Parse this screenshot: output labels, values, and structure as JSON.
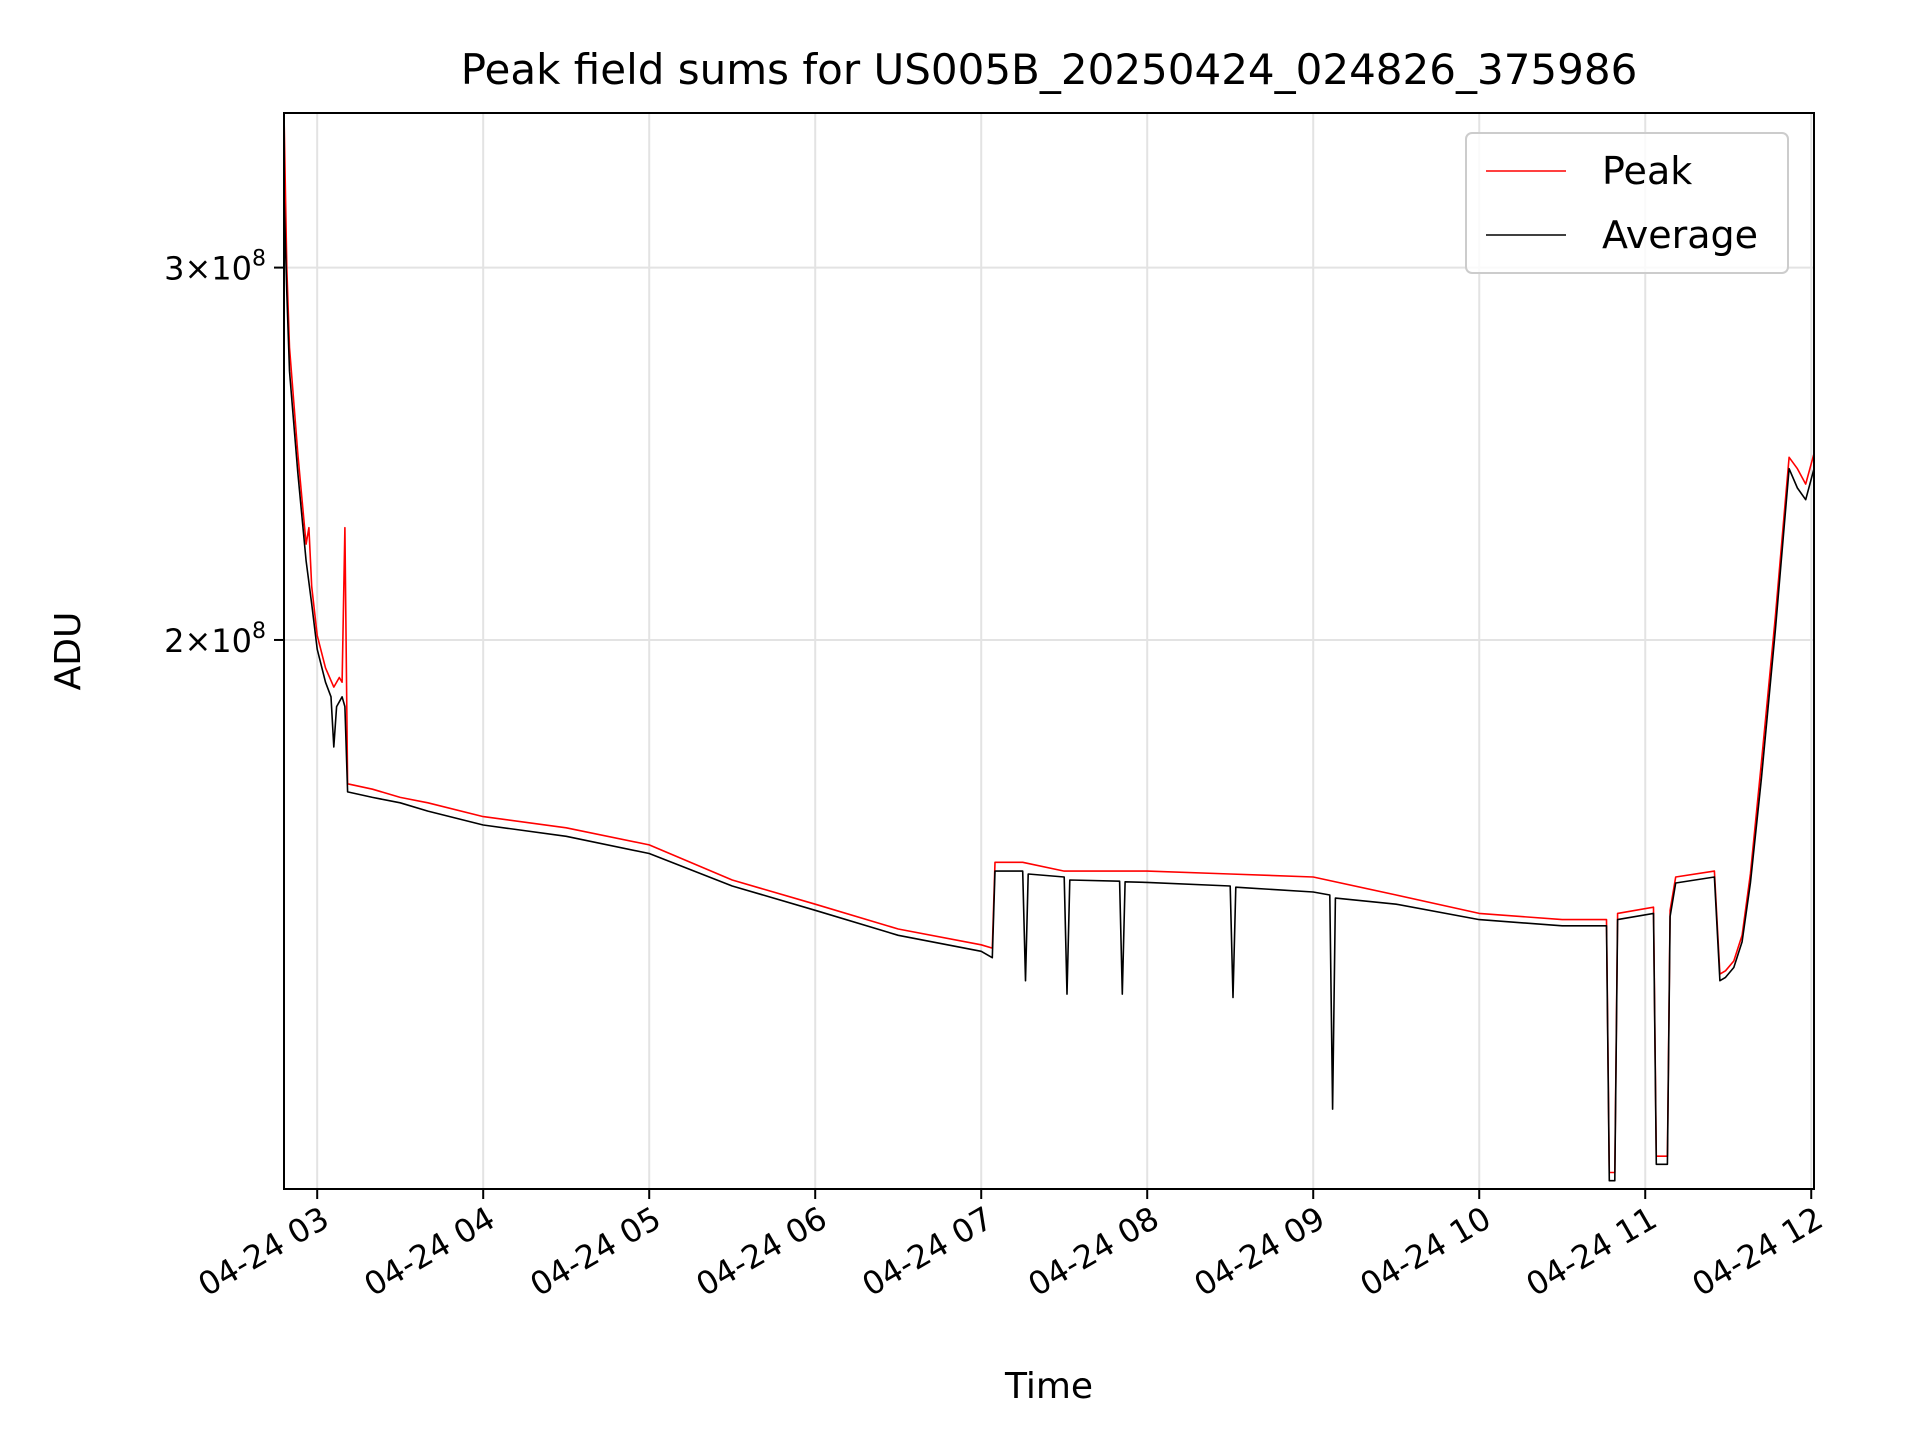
{
  "chart_data": {
    "type": "line",
    "title": "Peak field sums for US005B_20250424_024826_375986",
    "xlabel": "Time",
    "ylabel": "ADU",
    "xlim": [
      "2025-04-24 02:48",
      "2025-04-24 12:01"
    ],
    "ylim": [
      110000000,
      355000000
    ],
    "yscale": "log",
    "grid": true,
    "legend_position": "top-right",
    "x_ticks": [
      "04-24 03",
      "04-24 04",
      "04-24 05",
      "04-24 06",
      "04-24 07",
      "04-24 08",
      "04-24 09",
      "04-24 10",
      "04-24 11",
      "04-24 12"
    ],
    "y_ticks": [
      {
        "value": 200000000,
        "mantissa": "2",
        "exponent": "8"
      },
      {
        "value": 300000000,
        "mantissa": "3",
        "exponent": "8"
      }
    ],
    "series": [
      {
        "name": "Peak",
        "color": "#ff0000",
        "points": [
          [
            "2025-04-24 02:48",
            355000000
          ],
          [
            "2025-04-24 02:49",
            300000000
          ],
          [
            "2025-04-24 02:50",
            275000000
          ],
          [
            "2025-04-24 02:53",
            245000000
          ],
          [
            "2025-04-24 02:56",
            222000000
          ],
          [
            "2025-04-24 02:57",
            226000000
          ],
          [
            "2025-04-24 02:58",
            212000000
          ],
          [
            "2025-04-24 03:00",
            201000000
          ],
          [
            "2025-04-24 03:03",
            194000000
          ],
          [
            "2025-04-24 03:06",
            190000000
          ],
          [
            "2025-04-24 03:08",
            192000000
          ],
          [
            "2025-04-24 03:09",
            191000000
          ],
          [
            "2025-04-24 03:10",
            226000000
          ],
          [
            "2025-04-24 03:11",
            171000000
          ],
          [
            "2025-04-24 03:20",
            170000000
          ],
          [
            "2025-04-24 03:30",
            168500000
          ],
          [
            "2025-04-24 03:40",
            167500000
          ],
          [
            "2025-04-24 04:00",
            165000000
          ],
          [
            "2025-04-24 04:30",
            163000000
          ],
          [
            "2025-04-24 05:00",
            160000000
          ],
          [
            "2025-04-24 05:30",
            154000000
          ],
          [
            "2025-04-24 06:00",
            150000000
          ],
          [
            "2025-04-24 06:30",
            146000000
          ],
          [
            "2025-04-24 07:00",
            143500000
          ],
          [
            "2025-04-24 07:04",
            143000000
          ],
          [
            "2025-04-24 07:05",
            157000000
          ],
          [
            "2025-04-24 07:15",
            157000000
          ],
          [
            "2025-04-24 07:30",
            155500000
          ],
          [
            "2025-04-24 08:00",
            155500000
          ],
          [
            "2025-04-24 08:30",
            155000000
          ],
          [
            "2025-04-24 09:00",
            154500000
          ],
          [
            "2025-04-24 09:30",
            151500000
          ],
          [
            "2025-04-24 10:00",
            148500000
          ],
          [
            "2025-04-24 10:30",
            147500000
          ],
          [
            "2025-04-24 10:46",
            147500000
          ],
          [
            "2025-04-24 10:47",
            112000000
          ],
          [
            "2025-04-24 10:49",
            112000000
          ],
          [
            "2025-04-24 10:50",
            148500000
          ],
          [
            "2025-04-24 11:03",
            149500000
          ],
          [
            "2025-04-24 11:04",
            114000000
          ],
          [
            "2025-04-24 11:08",
            114000000
          ],
          [
            "2025-04-24 11:09",
            149000000
          ],
          [
            "2025-04-24 11:11",
            154500000
          ],
          [
            "2025-04-24 11:25",
            155500000
          ],
          [
            "2025-04-24 11:27",
            139000000
          ],
          [
            "2025-04-24 11:29",
            139500000
          ],
          [
            "2025-04-24 11:32",
            141000000
          ],
          [
            "2025-04-24 11:35",
            145000000
          ],
          [
            "2025-04-24 11:38",
            155000000
          ],
          [
            "2025-04-24 11:42",
            175000000
          ],
          [
            "2025-04-24 11:47",
            205000000
          ],
          [
            "2025-04-24 11:52",
            244000000
          ],
          [
            "2025-04-24 11:55",
            241000000
          ],
          [
            "2025-04-24 11:58",
            237000000
          ],
          [
            "2025-04-24 12:01",
            245000000
          ]
        ]
      },
      {
        "name": "Average",
        "color": "#000000",
        "points": [
          [
            "2025-04-24 02:48",
            325000000
          ],
          [
            "2025-04-24 02:49",
            292000000
          ],
          [
            "2025-04-24 02:50",
            268000000
          ],
          [
            "2025-04-24 02:53",
            240000000
          ],
          [
            "2025-04-24 02:56",
            218000000
          ],
          [
            "2025-04-24 02:58",
            208000000
          ],
          [
            "2025-04-24 03:00",
            198000000
          ],
          [
            "2025-04-24 03:03",
            191000000
          ],
          [
            "2025-04-24 03:05",
            188000000
          ],
          [
            "2025-04-24 03:06",
            178000000
          ],
          [
            "2025-04-24 03:07",
            186000000
          ],
          [
            "2025-04-24 03:09",
            188000000
          ],
          [
            "2025-04-24 03:10",
            186000000
          ],
          [
            "2025-04-24 03:11",
            169500000
          ],
          [
            "2025-04-24 03:20",
            168500000
          ],
          [
            "2025-04-24 03:30",
            167500000
          ],
          [
            "2025-04-24 03:40",
            166000000
          ],
          [
            "2025-04-24 04:00",
            163500000
          ],
          [
            "2025-04-24 04:30",
            161500000
          ],
          [
            "2025-04-24 05:00",
            158500000
          ],
          [
            "2025-04-24 05:30",
            153000000
          ],
          [
            "2025-04-24 06:00",
            149000000
          ],
          [
            "2025-04-24 06:30",
            145000000
          ],
          [
            "2025-04-24 07:00",
            142500000
          ],
          [
            "2025-04-24 07:04",
            141500000
          ],
          [
            "2025-04-24 07:05",
            155500000
          ],
          [
            "2025-04-24 07:15",
            155500000
          ],
          [
            "2025-04-24 07:16",
            138000000
          ],
          [
            "2025-04-24 07:17",
            155000000
          ],
          [
            "2025-04-24 07:30",
            154500000
          ],
          [
            "2025-04-24 07:31",
            136000000
          ],
          [
            "2025-04-24 07:32",
            154000000
          ],
          [
            "2025-04-24 07:50",
            153800000
          ],
          [
            "2025-04-24 07:51",
            136000000
          ],
          [
            "2025-04-24 07:52",
            153700000
          ],
          [
            "2025-04-24 08:00",
            153600000
          ],
          [
            "2025-04-24 08:30",
            153000000
          ],
          [
            "2025-04-24 08:31",
            135500000
          ],
          [
            "2025-04-24 08:32",
            152800000
          ],
          [
            "2025-04-24 09:00",
            152000000
          ],
          [
            "2025-04-24 09:06",
            151500000
          ],
          [
            "2025-04-24 09:07",
            120000000
          ],
          [
            "2025-04-24 09:08",
            151000000
          ],
          [
            "2025-04-24 09:30",
            150000000
          ],
          [
            "2025-04-24 10:00",
            147500000
          ],
          [
            "2025-04-24 10:30",
            146500000
          ],
          [
            "2025-04-24 10:46",
            146500000
          ],
          [
            "2025-04-24 10:47",
            111000000
          ],
          [
            "2025-04-24 10:49",
            111000000
          ],
          [
            "2025-04-24 10:50",
            147500000
          ],
          [
            "2025-04-24 11:03",
            148500000
          ],
          [
            "2025-04-24 11:04",
            113000000
          ],
          [
            "2025-04-24 11:08",
            113000000
          ],
          [
            "2025-04-24 11:09",
            148000000
          ],
          [
            "2025-04-24 11:11",
            153500000
          ],
          [
            "2025-04-24 11:25",
            154500000
          ],
          [
            "2025-04-24 11:27",
            138000000
          ],
          [
            "2025-04-24 11:29",
            138500000
          ],
          [
            "2025-04-24 11:32",
            140000000
          ],
          [
            "2025-04-24 11:35",
            144000000
          ],
          [
            "2025-04-24 11:38",
            153500000
          ],
          [
            "2025-04-24 11:42",
            172000000
          ],
          [
            "2025-04-24 11:47",
            202000000
          ],
          [
            "2025-04-24 11:52",
            241000000
          ],
          [
            "2025-04-24 11:55",
            236000000
          ],
          [
            "2025-04-24 11:58",
            233000000
          ],
          [
            "2025-04-24 12:01",
            241000000
          ]
        ]
      }
    ]
  }
}
